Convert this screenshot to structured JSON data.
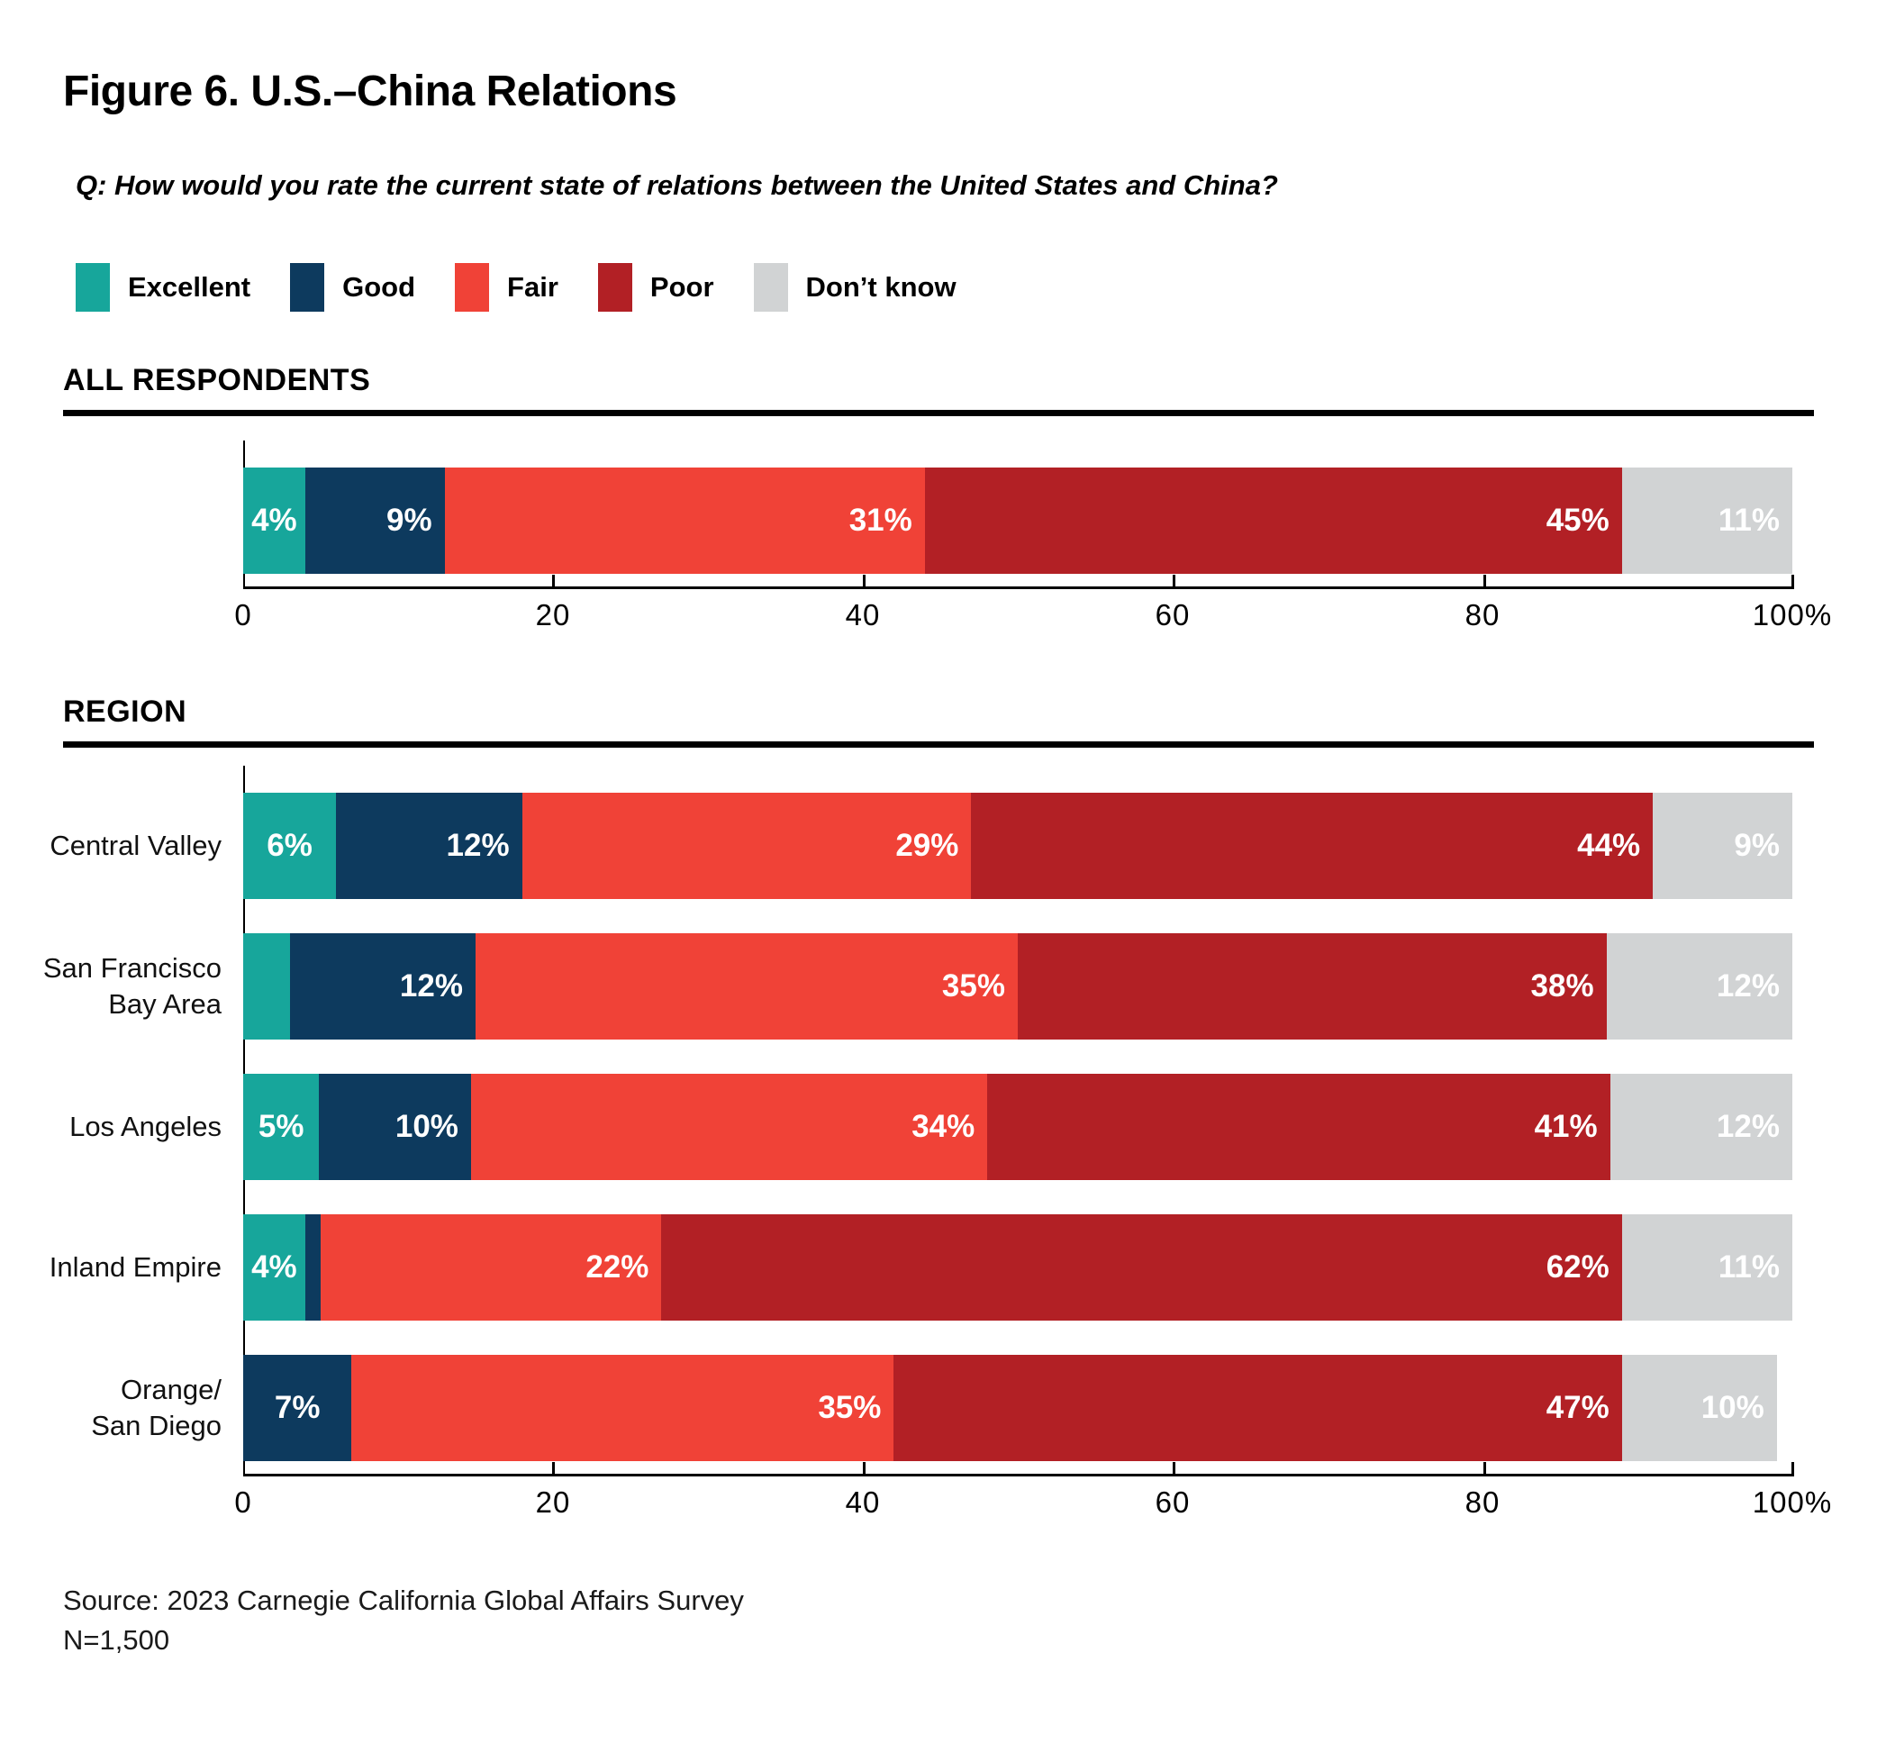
{
  "title": "Figure 6. U.S.–China Relations",
  "question": "Q: How would you rate the current state of relations between the United States and China?",
  "source": {
    "line1": "Source: 2023 Carnegie California Global Affairs Survey",
    "line2": "N=1,500"
  },
  "axis": {
    "tick_labels": [
      "0",
      "20",
      "40",
      "60",
      "80",
      "100%"
    ],
    "max": 100
  },
  "chart_data": {
    "type": "bar",
    "stacked": true,
    "orientation": "horizontal",
    "xlim": [
      0,
      100
    ],
    "title": "Figure 6. U.S.–China Relations",
    "series": [
      {
        "key": "excellent",
        "name": "Excellent",
        "color": "#17A69B"
      },
      {
        "key": "good",
        "name": "Good",
        "color": "#0D3A5E"
      },
      {
        "key": "fair",
        "name": "Fair",
        "color": "#F04237"
      },
      {
        "key": "poor",
        "name": "Poor",
        "color": "#B22025"
      },
      {
        "key": "dont-know",
        "name": "Don’t know",
        "color": "#D1D3D4"
      }
    ],
    "groups": [
      {
        "section": "ALL RESPONDENTS",
        "rows": [
          {
            "label": [],
            "values": [
              4,
              9,
              31,
              45,
              11
            ],
            "labels": [
              "4%",
              "9%",
              "31%",
              "45%",
              "11%"
            ]
          }
        ]
      },
      {
        "section": "REGION",
        "rows": [
          {
            "label": [
              "Central Valley"
            ],
            "values": [
              6,
              12,
              29,
              44,
              9
            ],
            "labels": [
              "6%",
              "12%",
              "29%",
              "44%",
              "9%"
            ]
          },
          {
            "label": [
              "San Francisco",
              "Bay Area"
            ],
            "values": [
              3,
              12,
              35,
              38,
              12
            ],
            "labels": [
              "",
              "12%",
              "35%",
              "38%",
              "12%"
            ]
          },
          {
            "label": [
              "Los Angeles"
            ],
            "values": [
              5,
              10,
              34,
              41,
              12
            ],
            "labels": [
              "5%",
              "10%",
              "34%",
              "41%",
              "12%"
            ]
          },
          {
            "label": [
              "Inland Empire"
            ],
            "values": [
              4,
              1,
              22,
              62,
              11
            ],
            "labels": [
              "4%",
              "",
              "22%",
              "62%",
              "11%"
            ]
          },
          {
            "label": [
              "Orange/",
              "San Diego"
            ],
            "values": [
              0,
              7,
              35,
              47,
              10
            ],
            "labels": [
              "",
              "7%",
              "35%",
              "47%",
              "10%"
            ]
          }
        ]
      }
    ]
  }
}
